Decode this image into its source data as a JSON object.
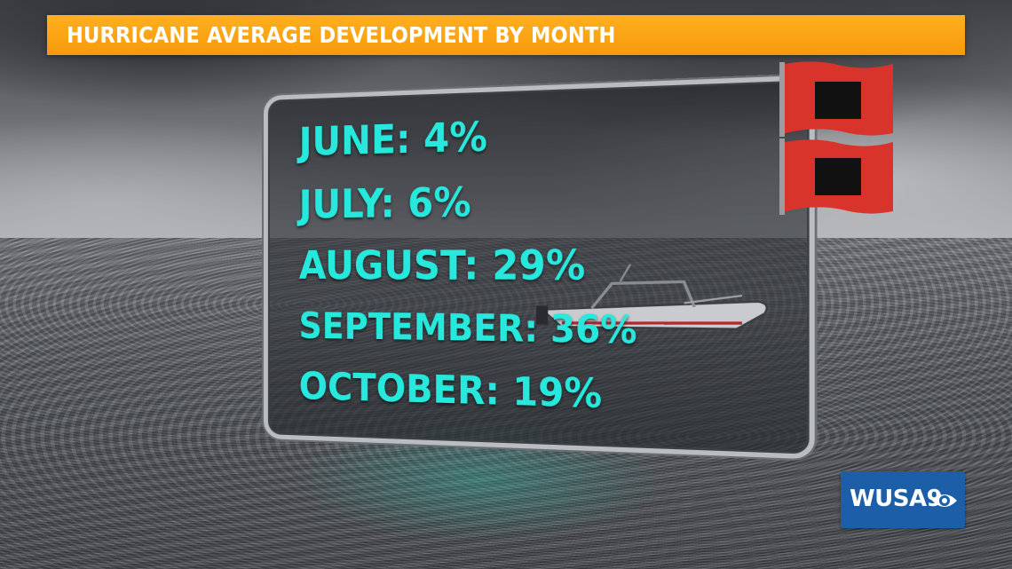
{
  "headline": "HURRICANE AVERAGE DEVELOPMENT BY MONTH",
  "stats": [
    {
      "text": "JUNE: 4%",
      "month": "JUNE",
      "percent": 4
    },
    {
      "text": "JULY: 6%",
      "month": "JULY",
      "percent": 6
    },
    {
      "text": "AUGUST: 29%",
      "month": "AUGUST",
      "percent": 29
    },
    {
      "text": "SEPTEMBER: 36%",
      "month": "SEPTEMBER",
      "percent": 36
    },
    {
      "text": "OCTOBER: 19%",
      "month": "OCTOBER",
      "percent": 19
    }
  ],
  "logo": {
    "text": "WUSA9"
  },
  "colors": {
    "headline_bar": "#f9a20f",
    "stat_text": "#26e8dc",
    "flag_red": "#d9342b",
    "flag_square": "#111111",
    "logo_bg": "#1c5ea8"
  },
  "icons": [
    "hurricane-warning-flag-icon",
    "cbs-eye-icon"
  ]
}
